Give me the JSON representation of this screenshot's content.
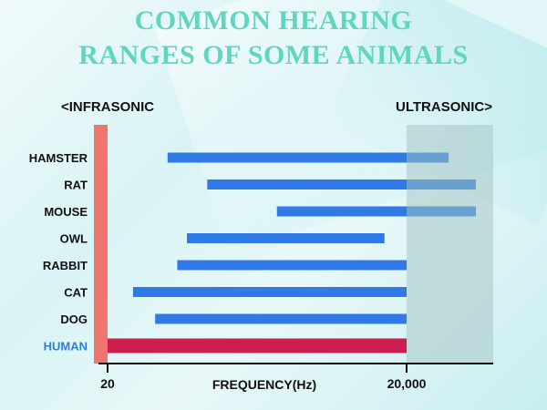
{
  "chart_data": {
    "type": "bar",
    "orientation": "horizontal-range",
    "title": [
      "COMMON HEARING",
      "RANGES OF SOME ANIMALS"
    ],
    "left_label": "<INFRASONIC",
    "right_label": "ULTRASONIC>",
    "xlabel": "FREQUENCY(Hz)",
    "x_ticks": [
      {
        "value": 20,
        "label": "20"
      },
      {
        "value": 20000,
        "label": "20,000"
      }
    ],
    "highlight_category": "HUMAN",
    "series": [
      {
        "name": "HAMSTER",
        "start": 80,
        "end": 45000
      },
      {
        "name": "RAT",
        "start": 200,
        "end": 76000
      },
      {
        "name": "MOUSE",
        "start": 1000,
        "end": 76000
      },
      {
        "name": "OWL",
        "start": 125,
        "end": 12000
      },
      {
        "name": "RABBIT",
        "start": 100,
        "end": 20000
      },
      {
        "name": "CAT",
        "start": 36,
        "end": 20000
      },
      {
        "name": "DOG",
        "start": 60,
        "end": 20000
      },
      {
        "name": "HUMAN",
        "start": 20,
        "end": 20000
      }
    ],
    "colors": {
      "bar": "#2f7ae6",
      "bar_ultra": "#6aa0cf",
      "human_bar": "#cc1f4f",
      "infrasonic_band": "#ef7570",
      "ultrasonic_band": "#a8c7c7",
      "highlight_label": "#2a7fd6",
      "title": "#5fd6bd"
    }
  }
}
